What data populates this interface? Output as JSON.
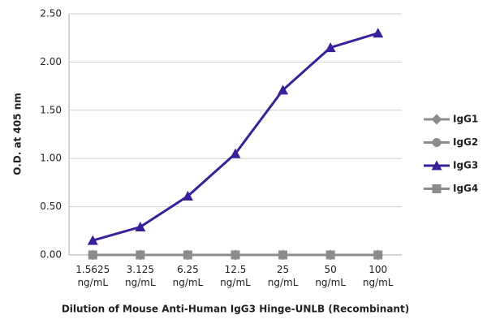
{
  "chart_data": {
    "type": "line",
    "y_label": "O.D. at 405 nm",
    "x_label": "Dilution of Mouse Anti-Human IgG3 Hinge-UNLB (Recombinant)",
    "categories": [
      "1.5625 ng/mL",
      "3.125 ng/mL",
      "6.25 ng/mL",
      "12.5 ng/mL",
      "25 ng/mL",
      "50 ng/mL",
      "100 ng/mL"
    ],
    "series": [
      {
        "name": "IgG1",
        "color": "#8c8c8c",
        "marker": "diamond",
        "values": [
          0,
          0,
          0,
          0,
          0,
          0,
          0
        ]
      },
      {
        "name": "IgG2",
        "color": "#8c8c8c",
        "marker": "circle",
        "values": [
          0,
          0,
          0,
          0,
          0,
          0,
          0
        ]
      },
      {
        "name": "IgG3",
        "color": "#3a1f9a",
        "marker": "triangle",
        "values": [
          0.15,
          0.29,
          0.61,
          1.05,
          1.71,
          2.15,
          2.3
        ]
      },
      {
        "name": "IgG4",
        "color": "#8c8c8c",
        "marker": "square",
        "values": [
          0,
          0,
          0,
          0,
          0,
          0,
          0
        ]
      }
    ],
    "ylim": [
      0,
      2.5
    ],
    "yticks": [
      {
        "value": 0,
        "label": "0.00"
      },
      {
        "value": 0.5,
        "label": "0.50"
      },
      {
        "value": 1,
        "label": "1.00"
      },
      {
        "value": 1.5,
        "label": "1.50"
      },
      {
        "value": 2,
        "label": "2.00"
      },
      {
        "value": 2.5,
        "label": "2.50"
      }
    ],
    "grid": true,
    "legend": "right"
  }
}
